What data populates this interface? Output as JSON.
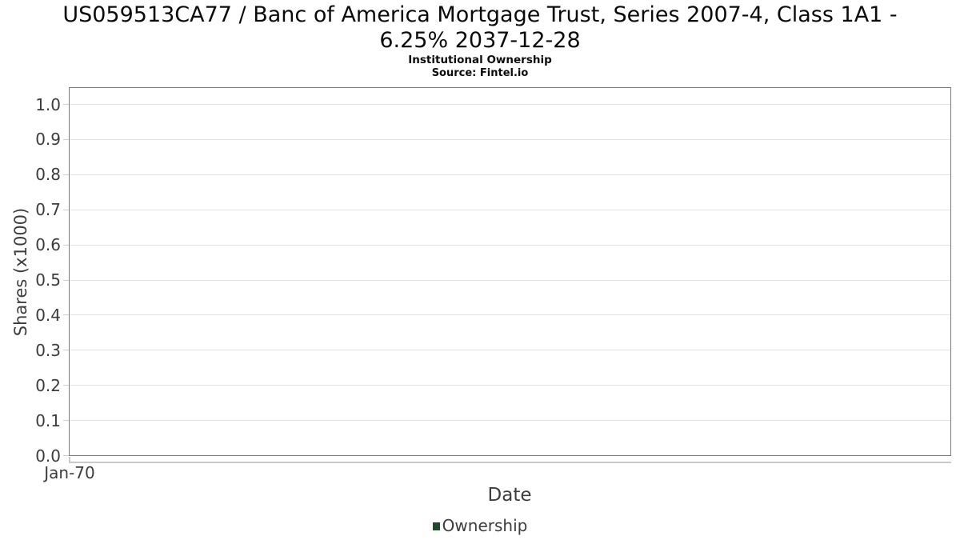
{
  "header": {
    "title_lines": [
      "US059513CA77 / Banc of America Mortgage Trust, Series 2007-4, Class 1A1 -",
      "6.25% 2037-12-28"
    ],
    "subtitle": "Institutional Ownership",
    "source": "Source: Fintel.io"
  },
  "chart_data": {
    "type": "line",
    "title": "US059513CA77 / Banc of America Mortgage Trust, Series 2007-4, Class 1A1 - 6.25% 2037-12-28",
    "subtitle": "Institutional Ownership",
    "source": "Source: Fintel.io",
    "xlabel": "Date",
    "ylabel": "Shares (x1000)",
    "x_tick_labels": [
      "Jan-70"
    ],
    "y_tick_labels": [
      "0.0",
      "0.1",
      "0.2",
      "0.3",
      "0.4",
      "0.5",
      "0.6",
      "0.7",
      "0.8",
      "0.9",
      "1.0"
    ],
    "y_ticks": [
      0.0,
      0.1,
      0.2,
      0.3,
      0.4,
      0.5,
      0.6,
      0.7,
      0.8,
      0.9,
      1.0
    ],
    "ylim": [
      0.0,
      1.045
    ],
    "grid": "horizontal",
    "legend_position": "bottom",
    "legend": {
      "entries": [
        {
          "label": "Ownership",
          "color": "#1e4a2b"
        }
      ]
    },
    "series": [
      {
        "name": "Ownership",
        "color": "#1e4a2b",
        "x": [],
        "values": []
      }
    ]
  },
  "colors": {
    "plot_border": "#7b7b7b",
    "gridline": "#e2e2e2",
    "axis_line": "#c9c9c9",
    "tick_text": "#3c3c3c",
    "title_text": "#0b0b0b",
    "legend_green": "#1e4a2b",
    "background": "#ffffff"
  }
}
